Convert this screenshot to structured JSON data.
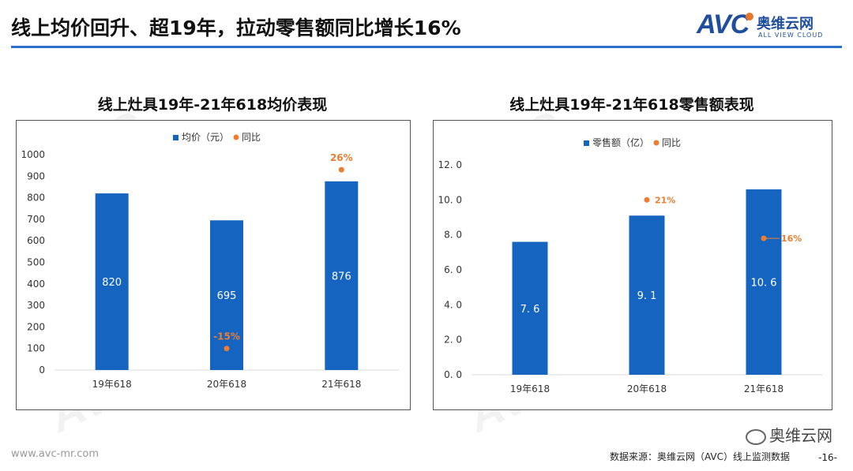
{
  "header": {
    "title": "线上均价回升、超19年，拉动零售额同比增长16%",
    "logo_mark": "AVC",
    "logo_cn": "奥维云网",
    "logo_en": "ALL VIEW CLOUD"
  },
  "colors": {
    "bar": "#1565c0",
    "dot": "#ed7d31",
    "rule": "#2a6fc9"
  },
  "chart_data": [
    {
      "type": "bar",
      "title": "线上灶具19年-21年618均价表现",
      "legend": {
        "bar_label": "均价（元）",
        "dot_label": "同比"
      },
      "categories": [
        "19年618",
        "20年618",
        "21年618"
      ],
      "values": [
        820,
        695,
        876
      ],
      "value_labels": [
        "820",
        "695",
        "876"
      ],
      "yoy": [
        null,
        -15,
        26
      ],
      "yoy_labels": [
        "",
        "-15%",
        "26%"
      ],
      "yoy_positions": [
        null,
        100,
        930
      ],
      "yticks": [
        "0",
        "100",
        "200",
        "300",
        "400",
        "500",
        "600",
        "700",
        "800",
        "900",
        "1000"
      ],
      "ylim": [
        0,
        1000
      ]
    },
    {
      "type": "bar",
      "title": "线上灶具19年-21年618零售额表现",
      "legend": {
        "bar_label": "零售额（亿）",
        "dot_label": "同比"
      },
      "categories": [
        "19年618",
        "20年618",
        "21年618"
      ],
      "values": [
        7.6,
        9.1,
        10.6
      ],
      "value_labels": [
        "7. 6",
        "9. 1",
        "10. 6"
      ],
      "yoy": [
        null,
        21,
        16
      ],
      "yoy_labels": [
        "",
        "21%",
        "16%"
      ],
      "yoy_positions": [
        null,
        10.0,
        7.8
      ],
      "yticks": [
        "0. 0",
        "2. 0",
        "4. 0",
        "6. 0",
        "8. 0",
        "10. 0",
        "12. 0"
      ],
      "ylim": [
        0,
        12
      ]
    }
  ],
  "footer": {
    "site": "www.avc-mr.com",
    "wechat": "奥维云网",
    "source": "数据来源：奥维云网（AVC）线上监测数据",
    "page": "-16-"
  }
}
